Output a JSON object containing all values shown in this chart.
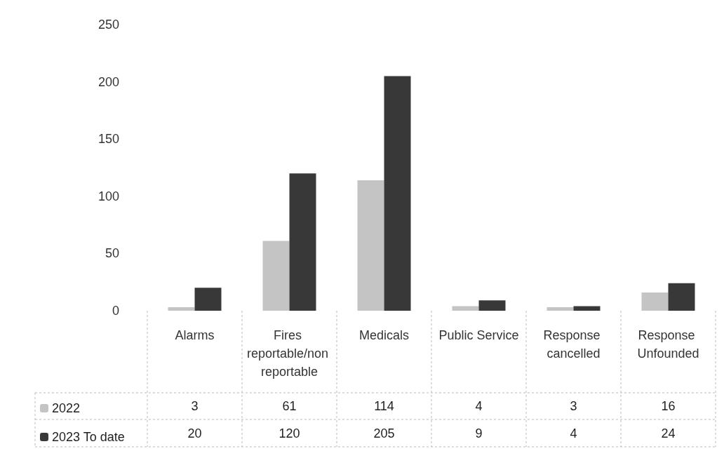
{
  "chart_data": {
    "type": "bar",
    "categories": [
      "Alarms",
      "Fires reportable/non reportable",
      "Medicals",
      "Public Service",
      "Response cancelled",
      "Response Unfounded"
    ],
    "series": [
      {
        "name": "2022",
        "color": "#c4c4c4",
        "values": [
          3,
          61,
          114,
          4,
          3,
          16
        ]
      },
      {
        "name": "2023 To date",
        "color": "#383838",
        "values": [
          20,
          120,
          205,
          9,
          4,
          24
        ]
      }
    ],
    "ylim": [
      0,
      250
    ],
    "yticks": [
      0,
      50,
      100,
      150,
      200,
      250
    ],
    "grid": false,
    "legend": "bottom",
    "data_labels": true
  }
}
